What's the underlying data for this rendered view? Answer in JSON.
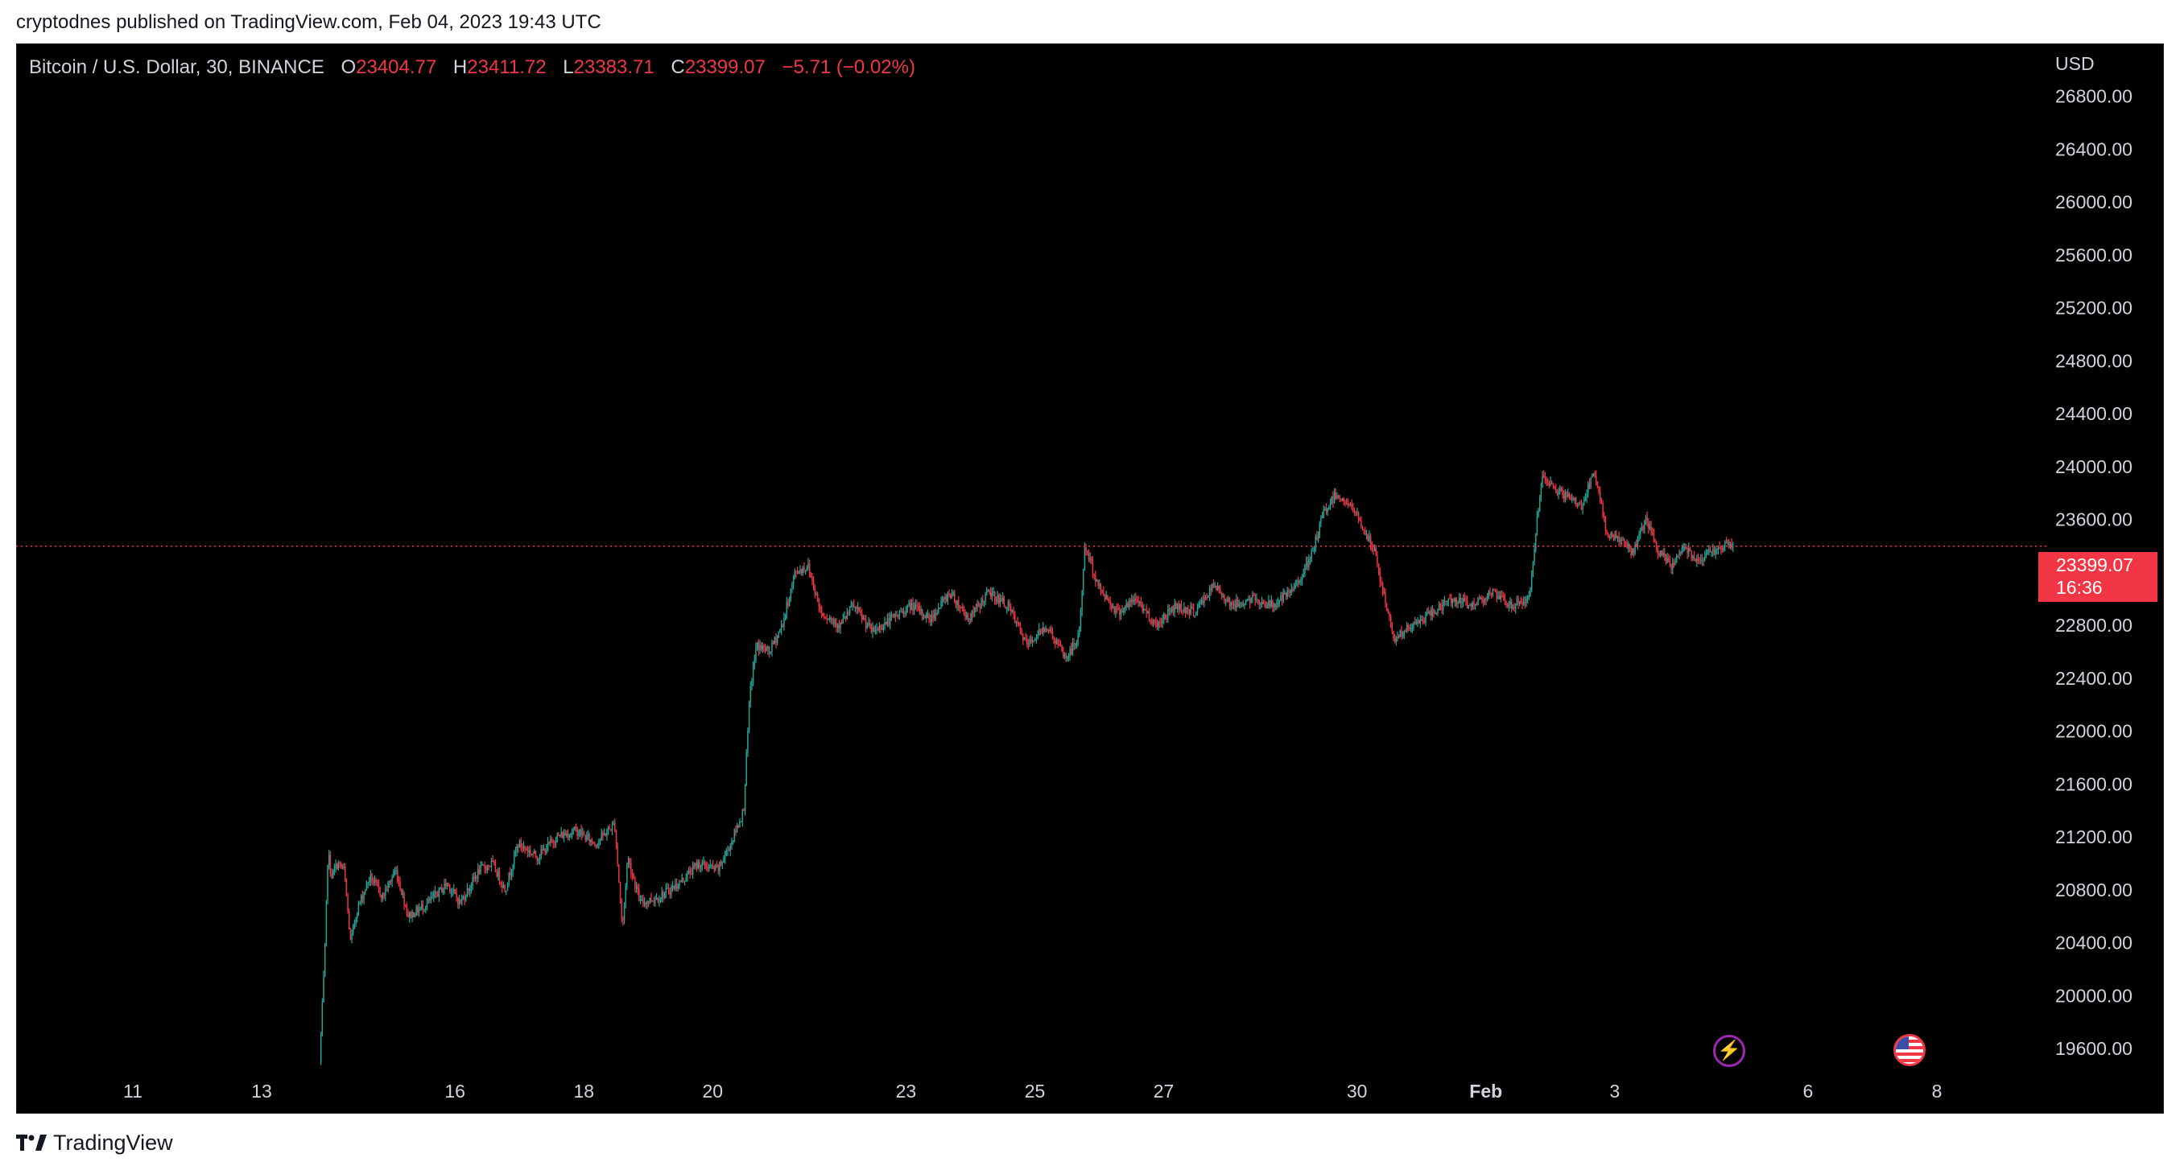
{
  "caption": "cryptodnes published on TradingView.com, Feb 04, 2023 19:43 UTC",
  "legend": {
    "symbol": "Bitcoin / U.S. Dollar, 30, BINANCE",
    "o_label": "O",
    "o_value": "23404.77",
    "h_label": "H",
    "h_value": "23411.72",
    "l_label": "L",
    "l_value": "23383.71",
    "c_label": "C",
    "c_value": "23399.07",
    "change": "−5.71 (−0.02%)"
  },
  "currency": "USD",
  "last_price": {
    "value": "23399.07",
    "countdown": "16:36"
  },
  "footer": {
    "brand": "TradingView"
  },
  "icons": {
    "events": "lightning-icon",
    "flag": "us-flag-icon",
    "brand": "tradingview-logo-icon"
  },
  "colors": {
    "up": "#26a69a",
    "down": "#f23645",
    "background": "#000000",
    "text": "#d1d4dc"
  },
  "chart_data": {
    "type": "candlestick",
    "interval": "30",
    "exchange": "BINANCE",
    "y_axis": {
      "min": 19400,
      "max": 27200,
      "ticks": [
        "26800.00",
        "26400.00",
        "26000.00",
        "25600.00",
        "25200.00",
        "24800.00",
        "24400.00",
        "24000.00",
        "23600.00",
        "22800.00",
        "22400.00",
        "22000.00",
        "21600.00",
        "21200.00",
        "20800.00",
        "20400.00",
        "20000.00",
        "19600.00"
      ]
    },
    "x_axis": {
      "ticks": [
        {
          "label": "11",
          "day": 11
        },
        {
          "label": "13",
          "day": 13
        },
        {
          "label": "16",
          "day": 16
        },
        {
          "label": "18",
          "day": 18
        },
        {
          "label": "20",
          "day": 20
        },
        {
          "label": "23",
          "day": 23
        },
        {
          "label": "25",
          "day": 25
        },
        {
          "label": "27",
          "day": 27
        },
        {
          "label": "30",
          "day": 30
        },
        {
          "label": "Feb",
          "day": 32,
          "bold": true
        },
        {
          "label": "3",
          "day": 34
        },
        {
          "label": "6",
          "day": 37
        },
        {
          "label": "8",
          "day": 39
        }
      ]
    },
    "path": [
      [
        13.92,
        19500
      ],
      [
        13.96,
        19900
      ],
      [
        14.0,
        20300
      ],
      [
        14.05,
        21100
      ],
      [
        14.1,
        20900
      ],
      [
        14.2,
        21000
      ],
      [
        14.3,
        20950
      ],
      [
        14.4,
        20400
      ],
      [
        14.5,
        20650
      ],
      [
        14.7,
        20900
      ],
      [
        14.9,
        20750
      ],
      [
        15.1,
        20950
      ],
      [
        15.3,
        20600
      ],
      [
        15.6,
        20700
      ],
      [
        15.9,
        20850
      ],
      [
        16.1,
        20700
      ],
      [
        16.4,
        20950
      ],
      [
        16.6,
        21000
      ],
      [
        16.8,
        20800
      ],
      [
        17.0,
        21150
      ],
      [
        17.3,
        21050
      ],
      [
        17.6,
        21200
      ],
      [
        17.9,
        21250
      ],
      [
        18.2,
        21150
      ],
      [
        18.5,
        21300
      ],
      [
        18.62,
        20500
      ],
      [
        18.7,
        21050
      ],
      [
        18.9,
        20700
      ],
      [
        19.2,
        20750
      ],
      [
        19.5,
        20850
      ],
      [
        19.8,
        21000
      ],
      [
        20.1,
        20950
      ],
      [
        20.3,
        21150
      ],
      [
        20.5,
        21400
      ],
      [
        20.6,
        22300
      ],
      [
        20.7,
        22650
      ],
      [
        20.9,
        22600
      ],
      [
        21.1,
        22800
      ],
      [
        21.3,
        23200
      ],
      [
        21.5,
        23250
      ],
      [
        21.7,
        22900
      ],
      [
        22.0,
        22800
      ],
      [
        22.2,
        22950
      ],
      [
        22.5,
        22750
      ],
      [
        22.8,
        22850
      ],
      [
        23.1,
        22950
      ],
      [
        23.4,
        22850
      ],
      [
        23.7,
        23050
      ],
      [
        24.0,
        22850
      ],
      [
        24.3,
        23050
      ],
      [
        24.6,
        22950
      ],
      [
        24.9,
        22650
      ],
      [
        25.2,
        22800
      ],
      [
        25.5,
        22550
      ],
      [
        25.7,
        22700
      ],
      [
        25.8,
        23400
      ],
      [
        26.0,
        23100
      ],
      [
        26.3,
        22900
      ],
      [
        26.6,
        23000
      ],
      [
        26.9,
        22800
      ],
      [
        27.2,
        22950
      ],
      [
        27.5,
        22900
      ],
      [
        27.8,
        23100
      ],
      [
        28.1,
        22950
      ],
      [
        28.4,
        23000
      ],
      [
        28.7,
        22950
      ],
      [
        29.0,
        23050
      ],
      [
        29.3,
        23300
      ],
      [
        29.5,
        23650
      ],
      [
        29.7,
        23800
      ],
      [
        30.0,
        23650
      ],
      [
        30.3,
        23350
      ],
      [
        30.4,
        23100
      ],
      [
        30.6,
        22700
      ],
      [
        30.9,
        22800
      ],
      [
        31.2,
        22900
      ],
      [
        31.5,
        23000
      ],
      [
        31.8,
        22950
      ],
      [
        32.1,
        23050
      ],
      [
        32.4,
        22950
      ],
      [
        32.7,
        23000
      ],
      [
        32.8,
        23550
      ],
      [
        32.9,
        23900
      ],
      [
        33.2,
        23800
      ],
      [
        33.5,
        23700
      ],
      [
        33.7,
        23950
      ],
      [
        33.9,
        23500
      ],
      [
        34.1,
        23450
      ],
      [
        34.3,
        23350
      ],
      [
        34.5,
        23600
      ],
      [
        34.7,
        23350
      ],
      [
        34.9,
        23250
      ],
      [
        35.1,
        23400
      ],
      [
        35.3,
        23300
      ],
      [
        35.5,
        23350
      ],
      [
        35.7,
        23400
      ],
      [
        35.85,
        23399
      ]
    ],
    "reference_line": {
      "price": 23399.07,
      "style": "dotted",
      "color": "#f23645"
    }
  }
}
